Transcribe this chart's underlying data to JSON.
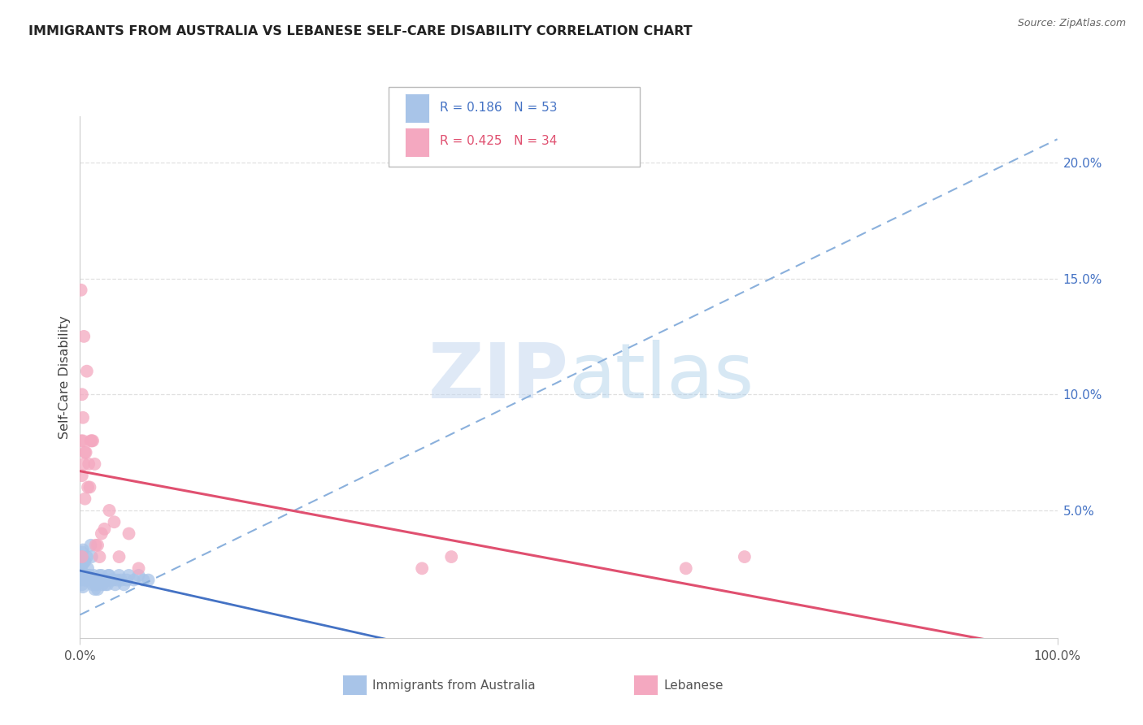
{
  "title": "IMMIGRANTS FROM AUSTRALIA VS LEBANESE SELF-CARE DISABILITY CORRELATION CHART",
  "source": "Source: ZipAtlas.com",
  "ylabel": "Self-Care Disability",
  "y_ticks": [
    0.0,
    0.05,
    0.1,
    0.15,
    0.2
  ],
  "y_tick_labels": [
    "",
    "5.0%",
    "10.0%",
    "15.0%",
    "20.0%"
  ],
  "x_min": 0.0,
  "x_max": 1.0,
  "y_min": -0.005,
  "y_max": 0.22,
  "australia_color": "#a8c4e8",
  "lebanese_color": "#f4a8c0",
  "australia_line_color": "#4472c4",
  "lebanese_line_color": "#e05070",
  "dashed_line_color": "#8ab0dc",
  "australia_R": 0.186,
  "australia_N": 53,
  "lebanese_R": 0.425,
  "lebanese_N": 34,
  "legend_text_color_australia": "#4472c4",
  "legend_text_color_lebanese": "#e05070",
  "watermark": "ZIPatlas",
  "background_color": "#ffffff",
  "grid_color": "#e0e0e0",
  "australia_x": [
    0.001,
    0.001,
    0.001,
    0.002,
    0.002,
    0.002,
    0.002,
    0.003,
    0.003,
    0.003,
    0.003,
    0.004,
    0.004,
    0.005,
    0.005,
    0.006,
    0.007,
    0.007,
    0.008,
    0.009,
    0.01,
    0.011,
    0.012,
    0.013,
    0.014,
    0.015,
    0.016,
    0.017,
    0.018,
    0.019,
    0.02,
    0.021,
    0.022,
    0.023,
    0.025,
    0.026,
    0.027,
    0.028,
    0.029,
    0.03,
    0.032,
    0.034,
    0.036,
    0.038,
    0.04,
    0.042,
    0.045,
    0.048,
    0.05,
    0.055,
    0.06,
    0.065,
    0.07
  ],
  "australia_y": [
    0.03,
    0.025,
    0.02,
    0.032,
    0.028,
    0.022,
    0.018,
    0.033,
    0.027,
    0.023,
    0.017,
    0.028,
    0.022,
    0.028,
    0.02,
    0.022,
    0.03,
    0.02,
    0.025,
    0.022,
    0.022,
    0.035,
    0.03,
    0.018,
    0.022,
    0.016,
    0.018,
    0.018,
    0.016,
    0.02,
    0.022,
    0.02,
    0.022,
    0.018,
    0.02,
    0.018,
    0.02,
    0.018,
    0.022,
    0.022,
    0.02,
    0.02,
    0.018,
    0.02,
    0.022,
    0.02,
    0.018,
    0.02,
    0.022,
    0.02,
    0.022,
    0.02,
    0.02
  ],
  "lebanese_x": [
    0.001,
    0.001,
    0.002,
    0.002,
    0.002,
    0.003,
    0.003,
    0.004,
    0.004,
    0.005,
    0.005,
    0.006,
    0.007,
    0.008,
    0.009,
    0.01,
    0.011,
    0.012,
    0.013,
    0.015,
    0.016,
    0.018,
    0.02,
    0.022,
    0.025,
    0.03,
    0.035,
    0.04,
    0.05,
    0.06,
    0.35,
    0.38,
    0.62,
    0.68
  ],
  "lebanese_y": [
    0.145,
    0.08,
    0.1,
    0.065,
    0.03,
    0.09,
    0.08,
    0.125,
    0.07,
    0.075,
    0.055,
    0.075,
    0.11,
    0.06,
    0.07,
    0.06,
    0.08,
    0.08,
    0.08,
    0.07,
    0.035,
    0.035,
    0.03,
    0.04,
    0.042,
    0.05,
    0.045,
    0.03,
    0.04,
    0.025,
    0.025,
    0.03,
    0.025,
    0.03
  ]
}
